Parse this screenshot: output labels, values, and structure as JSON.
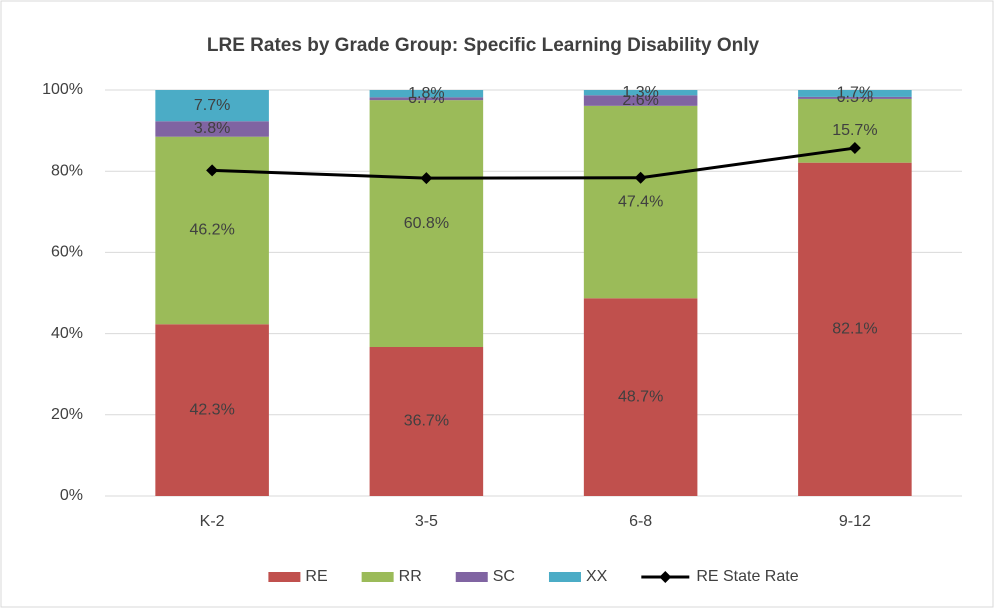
{
  "chart_data": {
    "type": "bar",
    "stacked": true,
    "title": "LRE Rates by Grade Group: Specific Learning Disability Only",
    "categories": [
      "K-2",
      "3-5",
      "6-8",
      "9-12"
    ],
    "series": [
      {
        "name": "RE",
        "color": "#c0504d",
        "values": [
          42.3,
          36.7,
          48.7,
          82.1
        ],
        "value_labels": [
          "42.3%",
          "36.7%",
          "48.7%",
          "82.1%"
        ]
      },
      {
        "name": "RR",
        "color": "#9bbb59",
        "values": [
          46.2,
          60.8,
          47.4,
          15.7
        ],
        "value_labels": [
          "46.2%",
          "60.8%",
          "47.4%",
          "15.7%"
        ]
      },
      {
        "name": "SC",
        "color": "#8064a2",
        "values": [
          3.8,
          0.7,
          2.6,
          0.5
        ],
        "value_labels": [
          "3.8%",
          "0.7%",
          "2.6%",
          "0.5%"
        ]
      },
      {
        "name": "XX",
        "color": "#4bacc6",
        "values": [
          7.7,
          1.8,
          1.3,
          1.7
        ],
        "value_labels": [
          "7.7%",
          "1.8%",
          "1.3%",
          "1.7%"
        ]
      },
      {
        "name": "RE State Rate",
        "type": "line",
        "color": "#000000",
        "values": [
          80.2,
          78.3,
          78.4,
          85.7
        ]
      }
    ],
    "ylim": [
      0,
      100
    ],
    "yticks": [
      {
        "value": 0,
        "label": "0%"
      },
      {
        "value": 20,
        "label": "20%"
      },
      {
        "value": 40,
        "label": "40%"
      },
      {
        "value": 60,
        "label": "60%"
      },
      {
        "value": 80,
        "label": "80%"
      },
      {
        "value": 100,
        "label": "100%"
      }
    ],
    "grid": true,
    "legend": "bottom"
  }
}
